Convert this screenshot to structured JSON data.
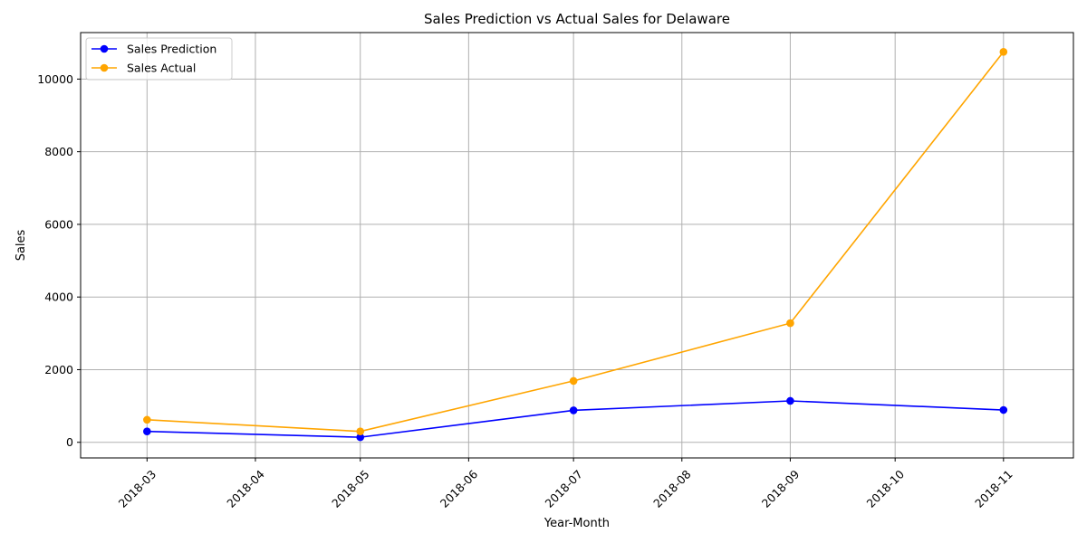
{
  "chart_data": {
    "type": "line",
    "title": "Sales Prediction vs Actual Sales for Delaware",
    "xlabel": "Year-Month",
    "ylabel": "Sales",
    "x_ticks": [
      "2018-03",
      "2018-04",
      "2018-05",
      "2018-06",
      "2018-07",
      "2018-08",
      "2018-09",
      "2018-10",
      "2018-11"
    ],
    "y_ticks": [
      0,
      2000,
      4000,
      6000,
      8000,
      10000
    ],
    "ylim": [
      -430,
      11280
    ],
    "xlim": [
      "2018-02-10",
      "2018-11-21"
    ],
    "grid": true,
    "legend_position": "top-left",
    "series": [
      {
        "name": "Sales Prediction",
        "color": "#0000ff",
        "x": [
          "2018-03-01",
          "2018-05-01",
          "2018-07-01",
          "2018-09-01",
          "2018-11-01"
        ],
        "values": [
          300,
          140,
          880,
          1140,
          890
        ]
      },
      {
        "name": "Sales Actual",
        "color": "#ffa500",
        "x": [
          "2018-03-01",
          "2018-05-01",
          "2018-07-01",
          "2018-09-01",
          "2018-11-01"
        ],
        "values": [
          620,
          300,
          1690,
          3280,
          10750
        ]
      }
    ]
  }
}
